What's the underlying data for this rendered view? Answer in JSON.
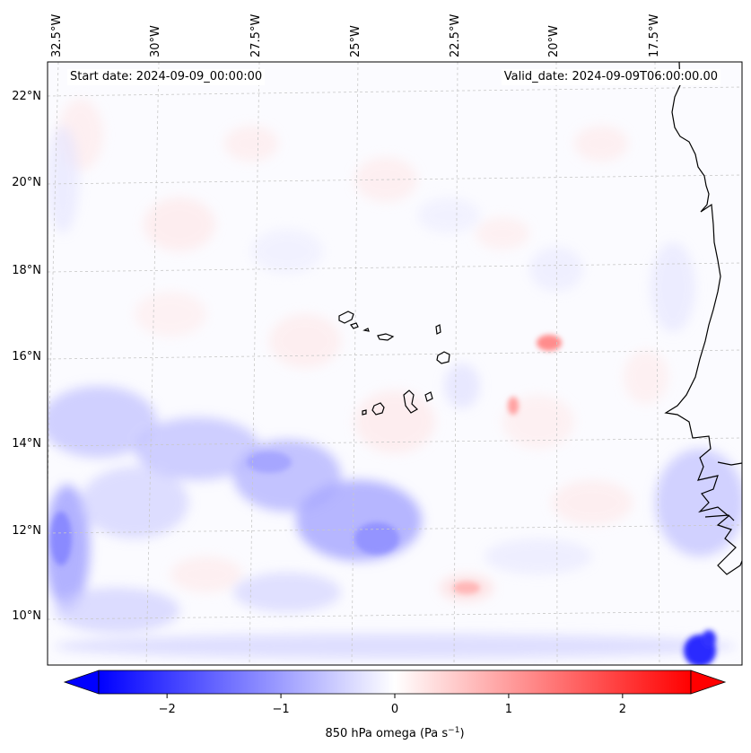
{
  "header": {
    "start_date": "Start date: 2024-09-09_00:00:00",
    "valid_date": "Valid_date: 2024-09-09T06:00:00.00"
  },
  "map": {
    "lon_labels": [
      "32.5°W",
      "30°W",
      "27.5°W",
      "25°W",
      "22.5°W",
      "20°W",
      "17.5°W"
    ],
    "lat_labels": [
      "22°N",
      "20°N",
      "18°N",
      "16°N",
      "14°N",
      "12°N",
      "10°N"
    ],
    "gridlines": true,
    "gridline_style": "dashed",
    "coastline_color": "#000000",
    "field_variable": "850 hPa omega",
    "field_colormap": "bwr"
  },
  "colorbar": {
    "label": "850 hPa omega (Pa s",
    "label_exp": "−1",
    "label_close": ")",
    "ticks": [
      "−2",
      "−1",
      "0",
      "1",
      "2"
    ],
    "min": -2.6,
    "max": 2.6,
    "extend": "both",
    "low_color": "#0000ff",
    "mid_color": "#ffffff",
    "high_color": "#ff0000"
  }
}
